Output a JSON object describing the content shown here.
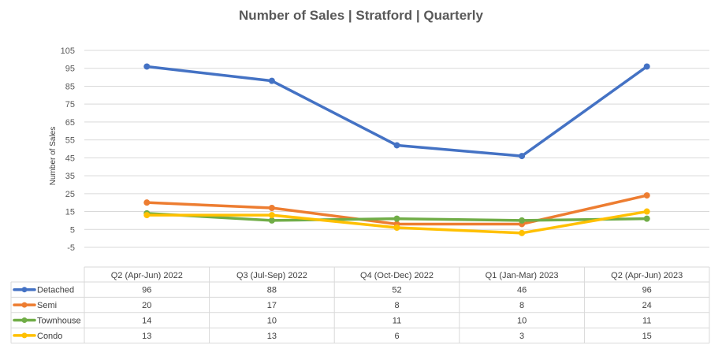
{
  "chart_data": {
    "type": "line",
    "title": "Number of Sales | Stratford | Quarterly",
    "xlabel": "",
    "ylabel": "Number of Sales",
    "ylim": [
      -5,
      105
    ],
    "yticks": [
      -5,
      5,
      15,
      25,
      35,
      45,
      55,
      65,
      75,
      85,
      95,
      105
    ],
    "grid": true,
    "legend": "table-below",
    "categories": [
      "Q2 (Apr-Jun) 2022",
      "Q3 (Jul-Sep) 2022",
      "Q4 (Oct-Dec) 2022",
      "Q1 (Jan-Mar) 2023",
      "Q2 (Apr-Jun) 2023"
    ],
    "series": [
      {
        "name": "Detached",
        "color": "#4472C4",
        "values": [
          96,
          88,
          52,
          46,
          96
        ]
      },
      {
        "name": "Semi",
        "color": "#ED7D31",
        "values": [
          20,
          17,
          8,
          8,
          24
        ]
      },
      {
        "name": "Townhouse",
        "color": "#70AD47",
        "values": [
          14,
          10,
          11,
          10,
          11
        ]
      },
      {
        "name": "Condo",
        "color": "#FFC000",
        "values": [
          13,
          13,
          6,
          3,
          15
        ]
      }
    ]
  }
}
